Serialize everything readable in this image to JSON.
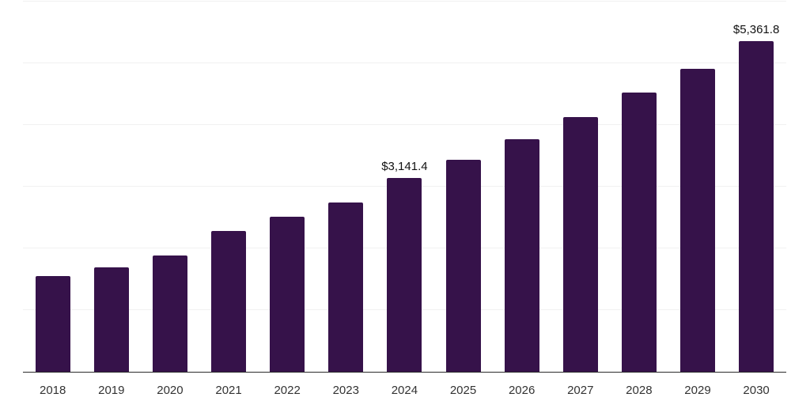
{
  "chart_data": {
    "type": "bar",
    "title": "",
    "xlabel": "",
    "ylabel": "",
    "categories": [
      "2018",
      "2019",
      "2020",
      "2021",
      "2022",
      "2023",
      "2024",
      "2025",
      "2026",
      "2027",
      "2028",
      "2029",
      "2030"
    ],
    "values": [
      1550,
      1690,
      1880,
      2280,
      2510,
      2750,
      3141.4,
      3430,
      3770,
      4125,
      4520,
      4915,
      5361.8
    ],
    "data_labels": {
      "2024": "$3,141.4",
      "2030": "$5,361.8"
    },
    "ylim": [
      0,
      6000
    ],
    "gridline_step": 1000,
    "grid": "horizontal-only",
    "legend": "none",
    "colors": {
      "bar": "#36124a",
      "gridline": "#f1f1f1",
      "axis_line": "#2b2b2b",
      "tick_label": "#333333",
      "data_label": "#111111",
      "background": "#ffffff"
    }
  }
}
